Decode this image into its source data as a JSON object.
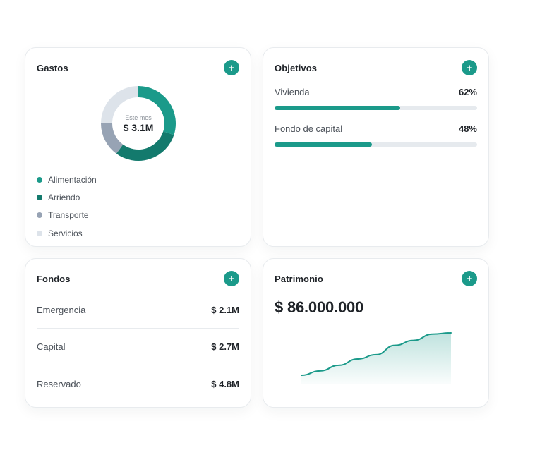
{
  "colors": {
    "accent": "#1b9a8a",
    "dark_teal": "#137a6d",
    "slate": "#97a3b4",
    "light_gray": "#dde3ea"
  },
  "gastos": {
    "title": "Gastos",
    "add_icon": "plus-icon",
    "donut_caption": "Este mes",
    "donut_value": "$ 3.1M",
    "legend": [
      {
        "label": "Alimentación",
        "color": "#1b9a8a"
      },
      {
        "label": "Arriendo",
        "color": "#137a6d"
      },
      {
        "label": "Transporte",
        "color": "#97a3b4"
      },
      {
        "label": "Servicios",
        "color": "#dde3ea"
      }
    ],
    "shares": [
      0.3,
      0.3,
      0.15,
      0.25
    ]
  },
  "objetivos": {
    "title": "Objetivos",
    "add_icon": "plus-icon",
    "goals": [
      {
        "label": "Vivienda",
        "pct_text": "62%",
        "pct": 62
      },
      {
        "label": "Fondo de capital",
        "pct_text": "48%",
        "pct": 48
      }
    ]
  },
  "fondos": {
    "title": "Fondos",
    "add_icon": "plus-icon",
    "rows": [
      {
        "label": "Emergencia",
        "value": "$ 2.1M"
      },
      {
        "label": "Capital",
        "value": "$ 2.7M"
      },
      {
        "label": "Reservado",
        "value": "$ 4.8M"
      }
    ]
  },
  "patrimonio": {
    "title": "Patrimonio",
    "add_icon": "plus-icon",
    "amount": "$ 86.000.000",
    "trend": [
      0,
      0.07,
      0.16,
      0.26,
      0.33,
      0.48,
      0.56,
      0.66,
      0.68
    ]
  }
}
